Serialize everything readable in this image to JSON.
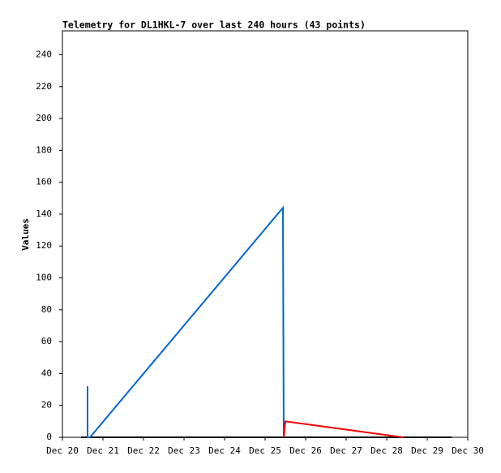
{
  "chart_data": {
    "type": "line",
    "title": "Telemetry for DL1HKL-7 over last 240 hours (43 points)",
    "y_label": "Values",
    "xlim": [
      20,
      30
    ],
    "xticks": [
      {
        "value": 20,
        "label": "Dec 20"
      },
      {
        "value": 21,
        "label": "Dec 21"
      },
      {
        "value": 22,
        "label": "Dec 22"
      },
      {
        "value": 23,
        "label": "Dec 23"
      },
      {
        "value": 24,
        "label": "Dec 24"
      },
      {
        "value": 25,
        "label": "Dec 25"
      },
      {
        "value": 26,
        "label": "Dec 26"
      },
      {
        "value": 27,
        "label": "Dec 27"
      },
      {
        "value": 28,
        "label": "Dec 28"
      },
      {
        "value": 29,
        "label": "Dec 29"
      },
      {
        "value": 30,
        "label": "Dec 30"
      }
    ],
    "ylim": [
      0,
      255
    ],
    "yticks": [
      0,
      20,
      40,
      60,
      80,
      100,
      120,
      140,
      160,
      180,
      200,
      220,
      240
    ],
    "grid": false,
    "series": [
      {
        "color": "#000000",
        "x": [
          20.46,
          29.6
        ],
        "values": [
          0,
          0
        ]
      },
      {
        "color": "#0066cc",
        "x": [
          20.62,
          20.62,
          20.68,
          25.44,
          25.46
        ],
        "values": [
          32,
          0,
          0,
          144,
          0
        ]
      },
      {
        "color": "#ee0000",
        "x": [
          25.46,
          25.5,
          28.4
        ],
        "values": [
          0,
          10,
          0
        ]
      }
    ]
  }
}
